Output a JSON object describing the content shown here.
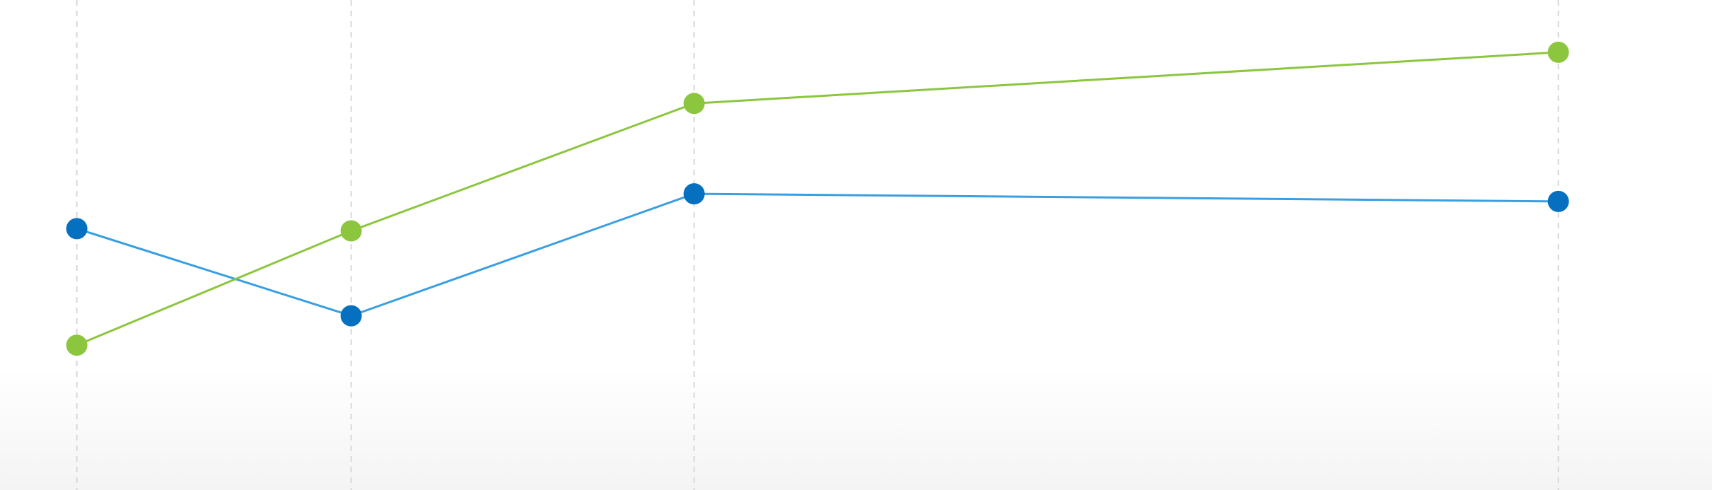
{
  "chart_data": {
    "type": "line",
    "title": "",
    "xlabel": "",
    "ylabel": "",
    "x": [
      0,
      1,
      2.25,
      5.4
    ],
    "xlim": [
      -0.28,
      5.96
    ],
    "ylim": [
      0,
      4.5
    ],
    "grid": {
      "vertical": true,
      "horizontal": false,
      "style": "dashed"
    },
    "legend": "none",
    "background_gradient": [
      "#ffffff",
      "#f4f4f4"
    ],
    "series": [
      {
        "values": [
          2.4,
          1.6,
          2.72,
          2.65
        ],
        "line_color": "#3a9fe0",
        "marker_color": "#0570c0"
      },
      {
        "values": [
          1.33,
          2.38,
          3.55,
          4.02
        ],
        "line_color": "#8cc63f",
        "marker_color": "#8cc63f"
      }
    ]
  }
}
